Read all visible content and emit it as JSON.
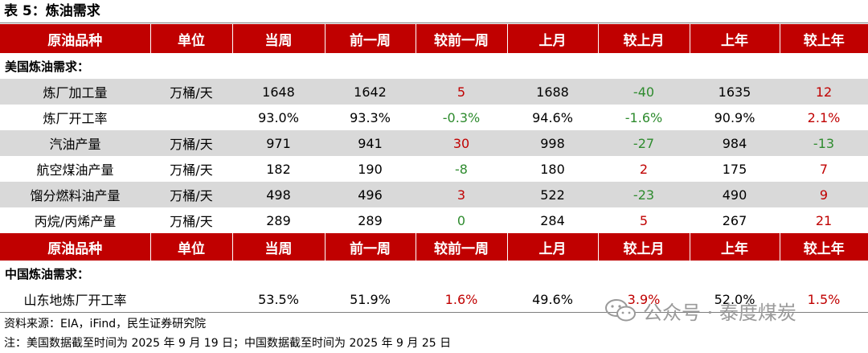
{
  "title": "表 5：炼油需求",
  "headers": [
    "原油品种",
    "单位",
    "当周",
    "前一周",
    "较前一周",
    "上月",
    "较上月",
    "上年",
    "较上年"
  ],
  "sections": [
    {
      "label": "美国炼油需求：",
      "rows": [
        {
          "name": "炼厂加工量",
          "unit": "万桶/天",
          "cur": "1648",
          "prev_week": "1642",
          "chg_week": "5",
          "prev_month": "1688",
          "chg_month": "-40",
          "prev_year": "1635",
          "chg_year": "12"
        },
        {
          "name": "炼厂开工率",
          "unit": "",
          "cur": "93.0%",
          "prev_week": "93.3%",
          "chg_week": "-0.3%",
          "prev_month": "94.6%",
          "chg_month": "-1.6%",
          "prev_year": "90.9%",
          "chg_year": "2.1%"
        },
        {
          "name": "汽油产量",
          "unit": "万桶/天",
          "cur": "971",
          "prev_week": "941",
          "chg_week": "30",
          "prev_month": "998",
          "chg_month": "-27",
          "prev_year": "984",
          "chg_year": "-13"
        },
        {
          "name": "航空煤油产量",
          "unit": "万桶/天",
          "cur": "182",
          "prev_week": "190",
          "chg_week": "-8",
          "prev_month": "180",
          "chg_month": "2",
          "prev_year": "175",
          "chg_year": "7"
        },
        {
          "name": "馏分燃料油产量",
          "unit": "万桶/天",
          "cur": "498",
          "prev_week": "496",
          "chg_week": "3",
          "prev_month": "522",
          "chg_month": "-23",
          "prev_year": "490",
          "chg_year": "9"
        },
        {
          "name": "丙烷/丙烯产量",
          "unit": "万桶/天",
          "cur": "289",
          "prev_week": "289",
          "chg_week": "0",
          "prev_month": "284",
          "chg_month": "5",
          "prev_year": "267",
          "chg_year": "21"
        }
      ]
    },
    {
      "label": "中国炼油需求：",
      "rows": [
        {
          "name": "山东地炼厂开工率",
          "unit": "",
          "cur": "53.5%",
          "prev_week": "51.9%",
          "chg_week": "1.6%",
          "prev_month": "49.6%",
          "chg_month": "3.9%",
          "prev_year": "52.0%",
          "chg_year": "1.5%"
        }
      ]
    }
  ],
  "colors": {
    "header_bg": "#c00000",
    "increase": "#c00000",
    "decrease": "#2e8b2e",
    "shaded_row": "#d9d9d9"
  },
  "source": "资料来源：EIA，iFind，民生证券研究院",
  "note": "注：美国数据截至时间为 2025 年 9 月 19 日；中国数据截至时间为 2025 年 9 月 25 日",
  "watermark": {
    "text": "公众号 · 泰度煤炭",
    "icon": "wechat-icon"
  }
}
